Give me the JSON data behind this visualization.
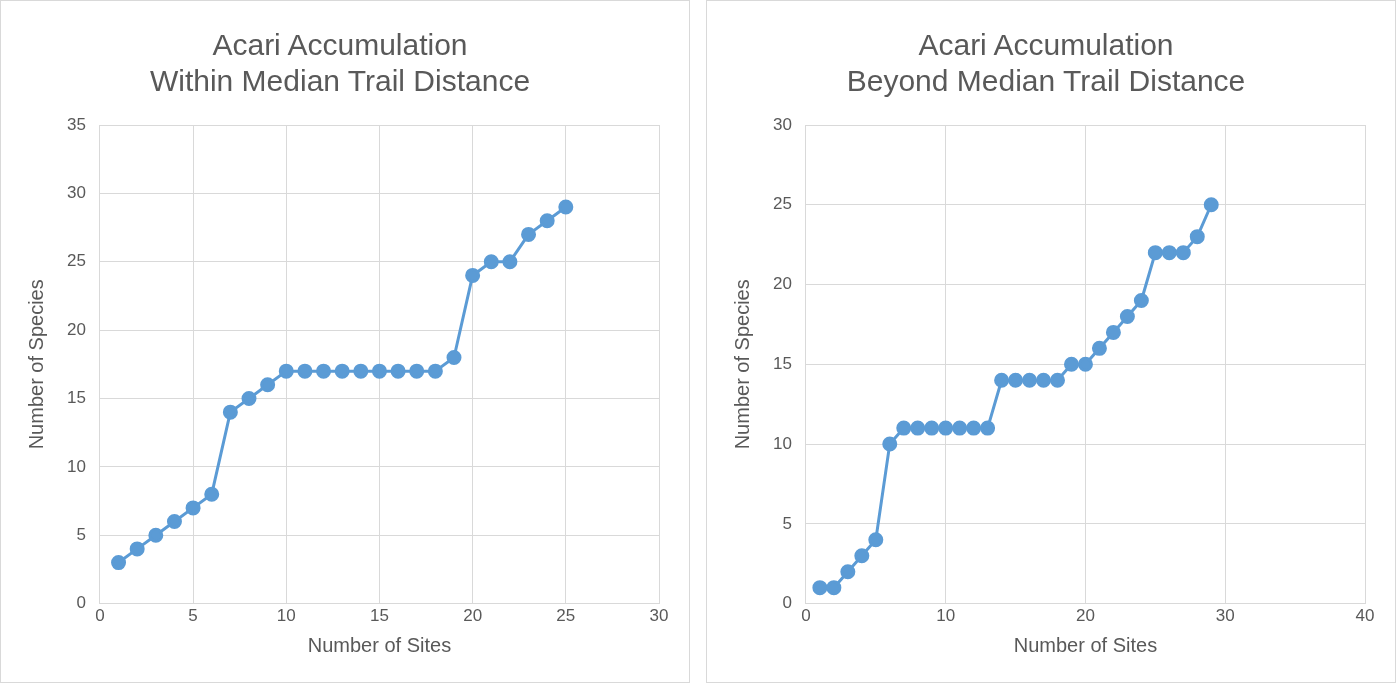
{
  "chart_data": [
    {
      "type": "line",
      "title": "Acari Accumulation\nWithin Median Trail Distance",
      "xlabel": "Number of Sites",
      "ylabel": "Number of Species",
      "color": "#5b9bd5",
      "marker": "circle",
      "line_style": "solid",
      "grid": true,
      "x": [
        1,
        2,
        3,
        4,
        5,
        6,
        7,
        8,
        9,
        10,
        11,
        12,
        13,
        14,
        15,
        16,
        17,
        18,
        19,
        20,
        21,
        22,
        23,
        24,
        25
      ],
      "values": [
        3,
        4,
        5,
        6,
        7,
        8,
        14,
        15,
        16,
        17,
        17,
        17,
        17,
        17,
        17,
        17,
        17,
        17,
        18,
        24,
        25,
        25,
        27,
        28,
        29
      ],
      "xlim": [
        0,
        30
      ],
      "xticks": [
        0,
        5,
        10,
        15,
        20,
        25,
        30
      ],
      "ylim": [
        0,
        35
      ],
      "yticks": [
        0,
        5,
        10,
        15,
        20,
        25,
        30,
        35
      ]
    },
    {
      "type": "line",
      "title": "Acari Accumulation\nBeyond Median Trail Distance",
      "xlabel": "Number of Sites",
      "ylabel": "Number of Species",
      "color": "#5b9bd5",
      "marker": "circle",
      "line_style": "solid",
      "grid": true,
      "x": [
        1,
        2,
        3,
        4,
        5,
        6,
        7,
        8,
        9,
        10,
        11,
        12,
        13,
        14,
        15,
        16,
        17,
        18,
        19,
        20,
        21,
        22,
        23,
        24,
        25,
        26,
        27,
        28,
        29
      ],
      "values": [
        1,
        1,
        2,
        3,
        4,
        10,
        11,
        11,
        11,
        11,
        11,
        11,
        11,
        14,
        14,
        14,
        14,
        14,
        15,
        15,
        16,
        17,
        18,
        19,
        22,
        22,
        22,
        23,
        25
      ],
      "xlim": [
        0,
        40
      ],
      "xticks": [
        0,
        10,
        20,
        30,
        40
      ],
      "ylim": [
        0,
        30
      ],
      "yticks": [
        0,
        5,
        10,
        15,
        20,
        25,
        30
      ]
    }
  ]
}
